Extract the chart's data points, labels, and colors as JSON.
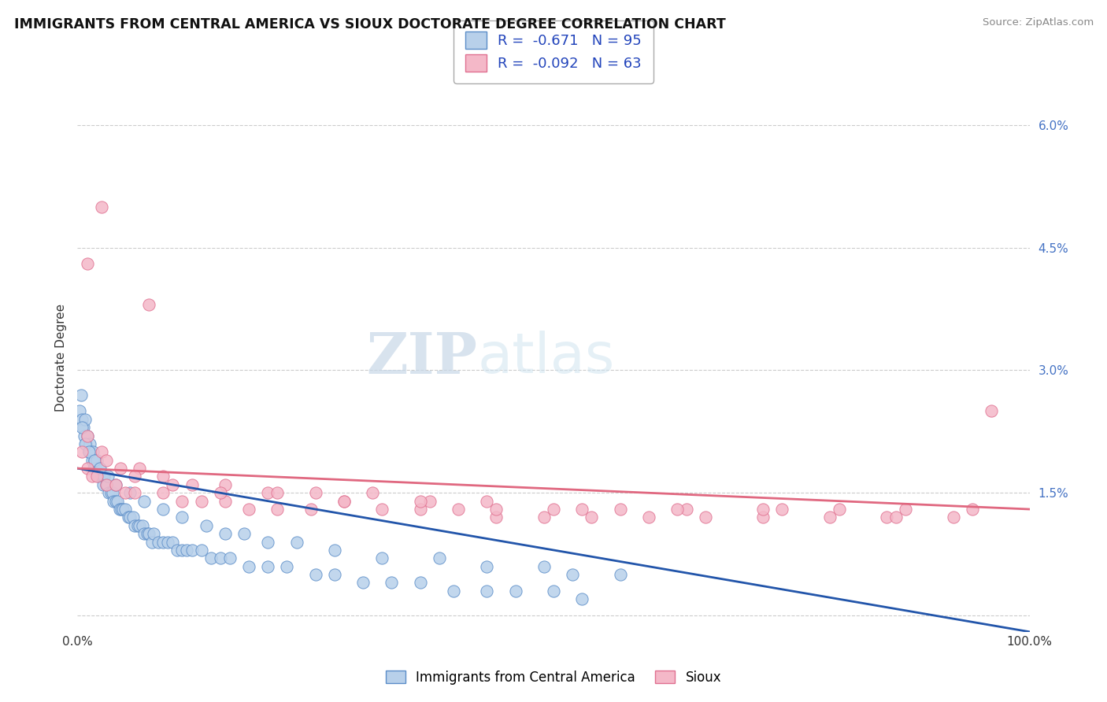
{
  "title": "IMMIGRANTS FROM CENTRAL AMERICA VS SIOUX DOCTORATE DEGREE CORRELATION CHART",
  "source": "Source: ZipAtlas.com",
  "ylabel": "Doctorate Degree",
  "legend_label_blue": "Immigrants from Central America",
  "legend_label_pink": "Sioux",
  "r_blue": -0.671,
  "n_blue": 95,
  "r_pink": -0.092,
  "n_pink": 63,
  "xlim": [
    0,
    1
  ],
  "ylim": [
    -0.002,
    0.065
  ],
  "ytick_vals": [
    0.0,
    0.015,
    0.03,
    0.045,
    0.06
  ],
  "ytick_labels": [
    "",
    "1.5%",
    "3.0%",
    "4.5%",
    "6.0%"
  ],
  "background_color": "#ffffff",
  "grid_color": "#cccccc",
  "blue_fill": "#b8d0ea",
  "blue_edge": "#5b8dc8",
  "pink_fill": "#f4b8c8",
  "pink_edge": "#e07090",
  "blue_line_color": "#2255aa",
  "pink_line_color": "#e06880",
  "watermark_zip": "ZIP",
  "watermark_atlas": "atlas",
  "blue_line_start_y": 0.018,
  "blue_line_end_y": -0.002,
  "pink_line_start_y": 0.018,
  "pink_line_end_y": 0.013,
  "blue_x": [
    0.002,
    0.004,
    0.005,
    0.006,
    0.007,
    0.008,
    0.009,
    0.01,
    0.012,
    0.013,
    0.014,
    0.015,
    0.016,
    0.017,
    0.018,
    0.019,
    0.02,
    0.022,
    0.023,
    0.025,
    0.026,
    0.027,
    0.028,
    0.03,
    0.031,
    0.033,
    0.035,
    0.037,
    0.038,
    0.04,
    0.042,
    0.044,
    0.046,
    0.048,
    0.05,
    0.053,
    0.055,
    0.058,
    0.06,
    0.063,
    0.065,
    0.068,
    0.07,
    0.073,
    0.075,
    0.078,
    0.08,
    0.085,
    0.09,
    0.095,
    0.1,
    0.105,
    0.11,
    0.115,
    0.12,
    0.13,
    0.14,
    0.15,
    0.16,
    0.18,
    0.2,
    0.22,
    0.25,
    0.27,
    0.3,
    0.33,
    0.36,
    0.395,
    0.43,
    0.46,
    0.5,
    0.53,
    0.005,
    0.008,
    0.012,
    0.018,
    0.024,
    0.032,
    0.04,
    0.055,
    0.07,
    0.09,
    0.11,
    0.135,
    0.155,
    0.175,
    0.2,
    0.23,
    0.27,
    0.32,
    0.38,
    0.43,
    0.49,
    0.52,
    0.57
  ],
  "blue_y": [
    0.025,
    0.027,
    0.024,
    0.023,
    0.022,
    0.024,
    0.021,
    0.022,
    0.02,
    0.021,
    0.02,
    0.019,
    0.02,
    0.018,
    0.019,
    0.018,
    0.019,
    0.017,
    0.018,
    0.017,
    0.017,
    0.016,
    0.017,
    0.016,
    0.016,
    0.015,
    0.015,
    0.015,
    0.014,
    0.014,
    0.014,
    0.013,
    0.013,
    0.013,
    0.013,
    0.012,
    0.012,
    0.012,
    0.011,
    0.011,
    0.011,
    0.011,
    0.01,
    0.01,
    0.01,
    0.009,
    0.01,
    0.009,
    0.009,
    0.009,
    0.009,
    0.008,
    0.008,
    0.008,
    0.008,
    0.008,
    0.007,
    0.007,
    0.007,
    0.006,
    0.006,
    0.006,
    0.005,
    0.005,
    0.004,
    0.004,
    0.004,
    0.003,
    0.003,
    0.003,
    0.003,
    0.002,
    0.023,
    0.021,
    0.02,
    0.019,
    0.018,
    0.017,
    0.016,
    0.015,
    0.014,
    0.013,
    0.012,
    0.011,
    0.01,
    0.01,
    0.009,
    0.009,
    0.008,
    0.007,
    0.007,
    0.006,
    0.006,
    0.005,
    0.005
  ],
  "pink_x": [
    0.005,
    0.01,
    0.015,
    0.02,
    0.025,
    0.03,
    0.04,
    0.05,
    0.06,
    0.075,
    0.09,
    0.11,
    0.13,
    0.155,
    0.18,
    0.21,
    0.245,
    0.28,
    0.32,
    0.36,
    0.4,
    0.44,
    0.49,
    0.54,
    0.6,
    0.66,
    0.72,
    0.79,
    0.85,
    0.92,
    0.96,
    0.01,
    0.025,
    0.045,
    0.065,
    0.09,
    0.12,
    0.155,
    0.2,
    0.25,
    0.31,
    0.37,
    0.43,
    0.5,
    0.57,
    0.64,
    0.72,
    0.8,
    0.87,
    0.94,
    0.01,
    0.03,
    0.06,
    0.1,
    0.15,
    0.21,
    0.28,
    0.36,
    0.44,
    0.53,
    0.63,
    0.74,
    0.86
  ],
  "pink_y": [
    0.02,
    0.018,
    0.017,
    0.017,
    0.05,
    0.016,
    0.016,
    0.015,
    0.015,
    0.038,
    0.015,
    0.014,
    0.014,
    0.014,
    0.013,
    0.013,
    0.013,
    0.014,
    0.013,
    0.013,
    0.013,
    0.012,
    0.012,
    0.012,
    0.012,
    0.012,
    0.012,
    0.012,
    0.012,
    0.012,
    0.025,
    0.022,
    0.02,
    0.018,
    0.018,
    0.017,
    0.016,
    0.016,
    0.015,
    0.015,
    0.015,
    0.014,
    0.014,
    0.013,
    0.013,
    0.013,
    0.013,
    0.013,
    0.013,
    0.013,
    0.043,
    0.019,
    0.017,
    0.016,
    0.015,
    0.015,
    0.014,
    0.014,
    0.013,
    0.013,
    0.013,
    0.013,
    0.012
  ]
}
